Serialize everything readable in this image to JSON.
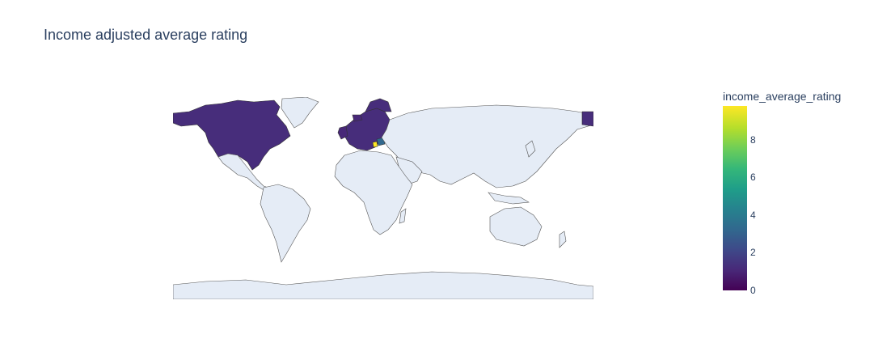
{
  "title": "Income adjusted average rating",
  "colorbar": {
    "title": "income_average_rating",
    "ticks": [
      "0",
      "2",
      "4",
      "6",
      "8"
    ],
    "tick_values": [
      0,
      2,
      4,
      6,
      8
    ],
    "range": [
      0,
      9.8
    ],
    "colorscale": "Viridis"
  },
  "map": {
    "projection": "equirectangular",
    "land_color": "#e5ecf6",
    "border_color": "#444444",
    "highlighted_regions": [
      "North America",
      "Europe"
    ]
  }
}
